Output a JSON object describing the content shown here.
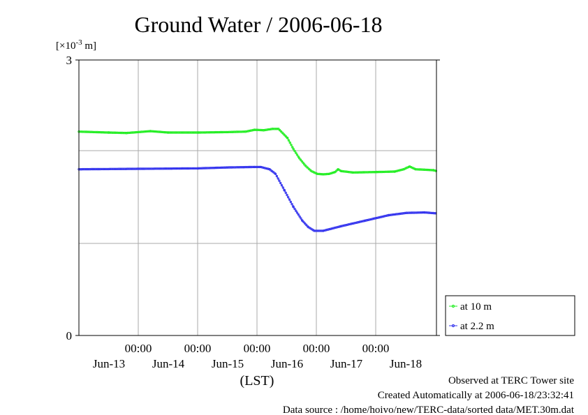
{
  "chart_data": {
    "type": "line",
    "title": "Ground Water / 2006-06-18",
    "yunit_prefix": "[×10",
    "yunit_exp": "-3",
    "yunit_suffix": " m]",
    "xlabel": "(LST)",
    "ylim": [
      0,
      3
    ],
    "y_tick_labels": [
      "0",
      "3"
    ],
    "x_time_labels": [
      "00:00",
      "00:00",
      "00:00",
      "00:00",
      "00:00"
    ],
    "x_date_labels": [
      "Jun-13",
      "Jun-14",
      "Jun-15",
      "Jun-16",
      "Jun-17",
      "Jun-18"
    ],
    "grid": true,
    "legend_placement": "right-bottom",
    "x_range_days": [
      0.0,
      6.0
    ],
    "series": [
      {
        "name": "at 10 m",
        "color": "#22ee22",
        "points": [
          [
            0.0,
            2.22
          ],
          [
            0.5,
            2.21
          ],
          [
            0.8,
            2.205
          ],
          [
            1.2,
            2.225
          ],
          [
            1.5,
            2.21
          ],
          [
            2.0,
            2.21
          ],
          [
            2.5,
            2.215
          ],
          [
            2.8,
            2.22
          ],
          [
            2.95,
            2.24
          ],
          [
            3.1,
            2.235
          ],
          [
            3.25,
            2.25
          ],
          [
            3.35,
            2.25
          ],
          [
            3.5,
            2.15
          ],
          [
            3.6,
            2.03
          ],
          [
            3.7,
            1.93
          ],
          [
            3.8,
            1.85
          ],
          [
            3.9,
            1.79
          ],
          [
            4.0,
            1.76
          ],
          [
            4.1,
            1.755
          ],
          [
            4.2,
            1.76
          ],
          [
            4.3,
            1.78
          ],
          [
            4.35,
            1.81
          ],
          [
            4.4,
            1.79
          ],
          [
            4.6,
            1.775
          ],
          [
            5.0,
            1.78
          ],
          [
            5.3,
            1.785
          ],
          [
            5.45,
            1.81
          ],
          [
            5.55,
            1.84
          ],
          [
            5.65,
            1.81
          ],
          [
            5.8,
            1.805
          ],
          [
            5.95,
            1.8
          ],
          [
            6.0,
            1.79
          ]
        ]
      },
      {
        "name": "at 2.2 m",
        "color": "#3333ee",
        "points": [
          [
            0.0,
            1.81
          ],
          [
            1.0,
            1.815
          ],
          [
            2.0,
            1.82
          ],
          [
            2.5,
            1.83
          ],
          [
            2.95,
            1.835
          ],
          [
            3.05,
            1.835
          ],
          [
            3.2,
            1.81
          ],
          [
            3.3,
            1.76
          ],
          [
            3.45,
            1.58
          ],
          [
            3.6,
            1.4
          ],
          [
            3.75,
            1.25
          ],
          [
            3.85,
            1.18
          ],
          [
            3.95,
            1.14
          ],
          [
            4.1,
            1.14
          ],
          [
            4.4,
            1.19
          ],
          [
            4.8,
            1.25
          ],
          [
            5.2,
            1.31
          ],
          [
            5.5,
            1.335
          ],
          [
            5.8,
            1.34
          ],
          [
            6.0,
            1.33
          ]
        ]
      }
    ]
  },
  "footer": {
    "line1": "Observed at TERC Tower site",
    "line2": "Created Automatically at 2006-06-18/23:32:41",
    "line3": "Data source : /home/hoivo/new/TERC-data/sorted  data/MET.30m.dat"
  }
}
